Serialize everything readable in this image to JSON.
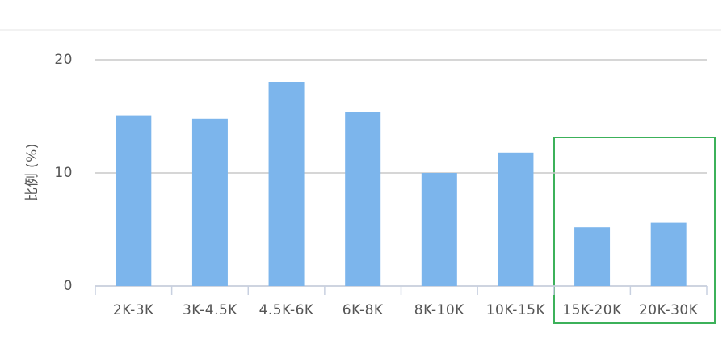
{
  "chart_data": {
    "type": "bar",
    "y_label": "比例 (%)",
    "categories": [
      "2K-3K",
      "3K-4.5K",
      "4.5K-6K",
      "6K-8K",
      "8K-10K",
      "10K-15K",
      "15K-20K",
      "20K-30K"
    ],
    "values": [
      15.1,
      14.8,
      18.0,
      15.4,
      10.0,
      11.8,
      5.2,
      5.6
    ],
    "color": "#7cb5ec",
    "ylim": [
      0,
      20
    ],
    "yticks": [
      0,
      10,
      20
    ],
    "grid": true
  }
}
